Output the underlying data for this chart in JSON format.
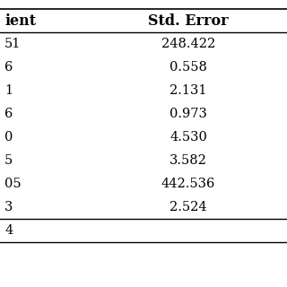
{
  "col_headers": [
    "ient",
    "Std. Error"
  ],
  "rows": [
    [
      "51",
      "248.422"
    ],
    [
      "6",
      "0.558"
    ],
    [
      "1",
      "2.131"
    ],
    [
      "6",
      "0.973"
    ],
    [
      "0",
      "4.530"
    ],
    [
      "5",
      "3.582"
    ],
    [
      "05",
      "442.536"
    ],
    [
      "3",
      "2.524"
    ]
  ],
  "footer": "4",
  "background_color": "#ffffff",
  "font_size": 10.5,
  "header_font_size": 11.5
}
